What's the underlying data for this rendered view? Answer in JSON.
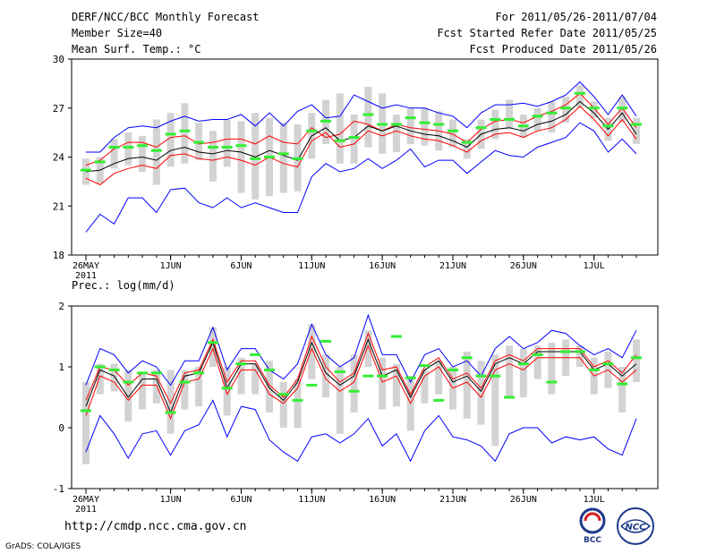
{
  "header": {
    "title": "DERF/NCC/BCC Monthly Forecast",
    "member": "Member Size=40",
    "variable": "Mean Surf. Temp.: °C",
    "period": "For 2011/05/26-2011/07/04",
    "started": "Fcst Started Refer Date 2011/05/25",
    "produced": "Fcst Produced Date 2011/05/26"
  },
  "footer": {
    "url": "http://cmdp.ncc.cma.gov.cn",
    "grads": "GrADS: COLA/IGES",
    "logo_left": "BCC",
    "logo_right": "NCC"
  },
  "colors": {
    "envelope": "#0000ff",
    "spread": "#ff0000",
    "mean": "#000000",
    "member_mean": "#33ee33",
    "box": "#d3d3d3"
  },
  "chart_data": [
    {
      "type": "line",
      "title": "Mean Surf. Temp.: °C",
      "xlabel": "",
      "ylabel": "°C",
      "ylim": [
        18,
        30
      ],
      "yticks": [
        18,
        21,
        24,
        27,
        30
      ],
      "xticks": [
        {
          "day": 0,
          "label": "26MAY",
          "sub": "2011"
        },
        {
          "day": 6,
          "label": "1JUN"
        },
        {
          "day": 11,
          "label": "6JUN"
        },
        {
          "day": 16,
          "label": "11JUN"
        },
        {
          "day": 21,
          "label": "16JUN"
        },
        {
          "day": 26,
          "label": "21JUN"
        },
        {
          "day": 31,
          "label": "26JUN"
        },
        {
          "day": 36,
          "label": "1JUL"
        }
      ],
      "x": [
        0,
        1,
        2,
        3,
        4,
        5,
        6,
        7,
        8,
        9,
        10,
        11,
        12,
        13,
        14,
        15,
        16,
        17,
        18,
        19,
        20,
        21,
        22,
        23,
        24,
        25,
        26,
        27,
        28,
        29,
        30,
        31,
        32,
        33,
        34,
        35,
        36,
        37,
        38,
        39
      ],
      "series": [
        {
          "name": "max",
          "values": [
            24.3,
            24.3,
            25.2,
            25.8,
            25.9,
            25.8,
            26.2,
            26.5,
            26.2,
            26.3,
            26.3,
            26.6,
            25.9,
            26.7,
            25.9,
            26.8,
            27.2,
            26.4,
            26.5,
            27.8,
            27.4,
            27.0,
            27.2,
            27.0,
            27.0,
            26.7,
            26.5,
            25.8,
            26.7,
            27.2,
            27.2,
            27.3,
            27.1,
            27.4,
            27.8,
            28.6,
            27.7,
            26.6,
            27.8,
            26.5
          ]
        },
        {
          "name": "p75",
          "values": [
            23.5,
            23.8,
            24.5,
            24.9,
            24.9,
            24.6,
            25.2,
            25.3,
            24.8,
            24.9,
            25.1,
            25.1,
            24.8,
            25.3,
            24.9,
            24.8,
            25.8,
            25.2,
            25.4,
            26.2,
            26.0,
            25.6,
            26.0,
            25.8,
            25.7,
            25.6,
            25.4,
            24.9,
            25.7,
            26.2,
            26.3,
            26.1,
            26.5,
            26.8,
            27.2,
            27.9,
            27.0,
            26.0,
            27.0,
            25.8
          ]
        },
        {
          "name": "mean",
          "values": [
            23.1,
            23.2,
            23.6,
            23.9,
            24.0,
            23.8,
            24.4,
            24.6,
            24.3,
            24.2,
            24.4,
            24.3,
            24.0,
            24.4,
            24.1,
            23.8,
            25.3,
            25.8,
            25.0,
            25.2,
            25.9,
            25.6,
            25.9,
            25.6,
            25.4,
            25.3,
            25.0,
            24.6,
            25.4,
            25.7,
            25.8,
            25.6,
            26.0,
            26.2,
            26.6,
            27.4,
            26.7,
            25.7,
            26.7,
            25.4
          ]
        },
        {
          "name": "p25",
          "values": [
            22.7,
            22.3,
            23.0,
            23.3,
            23.5,
            23.3,
            24.1,
            24.2,
            23.9,
            23.8,
            24.0,
            23.8,
            23.5,
            24.0,
            23.6,
            23.4,
            25.0,
            25.5,
            24.6,
            24.8,
            25.6,
            25.3,
            25.6,
            25.3,
            25.1,
            25.0,
            24.7,
            24.3,
            25.0,
            25.4,
            25.5,
            25.2,
            25.6,
            25.8,
            26.3,
            27.1,
            26.3,
            25.3,
            26.3,
            25.1
          ]
        },
        {
          "name": "min",
          "values": [
            22.0,
            22.2,
            22.2,
            22.7,
            22.9,
            22.8,
            23.3,
            23.9,
            23.6,
            23.5,
            23.7,
            23.6,
            23.4,
            23.6,
            23.3,
            23.2,
            24.7,
            25.3,
            24.3,
            24.6,
            25.3,
            25.0,
            25.3,
            25.0,
            24.8,
            24.7,
            24.5,
            24.0,
            24.8,
            25.1,
            25.2,
            24.9,
            25.3,
            25.5,
            26.0,
            26.8,
            26.0,
            25.0,
            26.0,
            24.7
          ]
        },
        {
          "name": "min_env",
          "values": [
            19.4,
            20.5,
            19.9,
            21.5,
            21.5,
            20.6,
            22.0,
            22.1,
            21.2,
            20.9,
            21.5,
            20.9,
            21.2,
            20.9,
            20.6,
            20.6,
            22.8,
            23.6,
            23.1,
            23.3,
            23.9,
            23.3,
            23.8,
            24.5,
            23.4,
            23.8,
            23.8,
            23.0,
            23.7,
            24.4,
            24.1,
            24.0,
            24.6,
            24.9,
            25.2,
            26.1,
            25.6,
            24.3,
            25.1,
            24.2
          ]
        },
        {
          "name": "member_mean",
          "values": [
            23.2,
            23.7,
            24.6,
            24.6,
            24.7,
            24.4,
            25.4,
            25.6,
            24.9,
            24.6,
            24.6,
            24.7,
            23.9,
            24.0,
            24.2,
            23.9,
            25.6,
            26.2,
            25.0,
            25.2,
            26.6,
            26.0,
            26.0,
            26.4,
            26.1,
            26.0,
            25.6,
            24.9,
            25.8,
            26.3,
            26.3,
            25.9,
            26.5,
            26.7,
            27.0,
            27.9,
            27.0,
            25.9,
            27.0,
            26.0
          ]
        },
        {
          "name": "box_top",
          "values": [
            23.9,
            24.0,
            25.1,
            25.5,
            25.3,
            26.3,
            26.7,
            27.3,
            26.1,
            25.6,
            26.3,
            26.2,
            26.7,
            26.4,
            26.1,
            26.0,
            26.7,
            27.5,
            27.9,
            26.6,
            28.3,
            27.9,
            26.6,
            27.0,
            27.0,
            26.8,
            26.3,
            25.1,
            26.3,
            26.9,
            27.5,
            26.6,
            27.0,
            27.4,
            27.7,
            28.4,
            27.4,
            26.4,
            27.7,
            26.4
          ]
        },
        {
          "name": "box_bot",
          "values": [
            22.3,
            22.4,
            23.3,
            23.5,
            23.1,
            22.3,
            23.4,
            23.6,
            23.8,
            22.5,
            23.4,
            21.8,
            21.4,
            21.6,
            21.8,
            21.9,
            23.9,
            24.8,
            23.6,
            23.6,
            24.6,
            24.2,
            24.3,
            24.8,
            24.7,
            24.4,
            24.6,
            23.9,
            24.5,
            25.1,
            25.7,
            25.2,
            25.6,
            25.5,
            26.1,
            27.0,
            26.4,
            25.0,
            26.1,
            24.8
          ]
        }
      ]
    },
    {
      "type": "line",
      "title": "Prec.: log(mm/d)",
      "xlabel": "",
      "ylabel": "log(mm/d)",
      "ylim": [
        -1,
        2
      ],
      "yticks": [
        -1,
        0,
        1,
        2
      ],
      "xticks": [
        {
          "day": 0,
          "label": "26MAY",
          "sub": "2011"
        },
        {
          "day": 6,
          "label": "1JUN"
        },
        {
          "day": 11,
          "label": "6JUN"
        },
        {
          "day": 16,
          "label": "11JUN"
        },
        {
          "day": 21,
          "label": "16JUN"
        },
        {
          "day": 26,
          "label": "21JUN"
        },
        {
          "day": 31,
          "label": "26JUN"
        },
        {
          "day": 36,
          "label": "1JUL"
        }
      ],
      "x": [
        0,
        1,
        2,
        3,
        4,
        5,
        6,
        7,
        8,
        9,
        10,
        11,
        12,
        13,
        14,
        15,
        16,
        17,
        18,
        19,
        20,
        21,
        22,
        23,
        24,
        25,
        26,
        27,
        28,
        29,
        30,
        31,
        32,
        33,
        34,
        35,
        36,
        37,
        38,
        39
      ],
      "series": [
        {
          "name": "max",
          "values": [
            0.7,
            1.3,
            1.2,
            0.9,
            1.1,
            1.0,
            0.7,
            1.1,
            1.1,
            1.65,
            0.95,
            1.3,
            1.3,
            0.95,
            0.8,
            1.05,
            1.7,
            1.2,
            1.0,
            1.15,
            1.85,
            1.2,
            1.2,
            0.75,
            1.2,
            1.3,
            1.0,
            1.1,
            0.85,
            1.3,
            1.5,
            1.3,
            1.4,
            1.6,
            1.55,
            1.35,
            1.2,
            1.3,
            1.15,
            1.6
          ]
        },
        {
          "name": "p75",
          "values": [
            0.45,
            1.0,
            0.95,
            0.7,
            0.9,
            0.85,
            0.4,
            0.9,
            0.95,
            1.45,
            0.75,
            1.1,
            1.1,
            0.7,
            0.5,
            0.8,
            1.5,
            1.0,
            0.75,
            0.9,
            1.55,
            0.95,
            1.0,
            0.55,
            1.0,
            1.15,
            0.8,
            0.9,
            0.65,
            1.1,
            1.2,
            1.1,
            1.3,
            1.3,
            1.3,
            1.3,
            1.0,
            1.1,
            0.9,
            1.2
          ]
        },
        {
          "name": "mean",
          "values": [
            0.35,
            0.95,
            0.85,
            0.5,
            0.8,
            0.8,
            0.25,
            0.85,
            0.9,
            1.4,
            0.65,
            1.05,
            1.05,
            0.65,
            0.45,
            0.75,
            1.4,
            0.9,
            0.7,
            0.85,
            1.45,
            0.85,
            0.95,
            0.5,
            0.95,
            1.1,
            0.75,
            0.85,
            0.6,
            1.05,
            1.15,
            1.05,
            1.25,
            1.25,
            1.25,
            1.25,
            0.95,
            1.05,
            0.85,
            1.05
          ]
        },
        {
          "name": "p25",
          "values": [
            0.2,
            0.85,
            0.75,
            0.45,
            0.7,
            0.7,
            0.15,
            0.75,
            0.8,
            1.3,
            0.55,
            0.95,
            0.95,
            0.55,
            0.4,
            0.65,
            1.3,
            0.8,
            0.6,
            0.75,
            1.35,
            0.75,
            0.85,
            0.4,
            0.85,
            1.0,
            0.65,
            0.75,
            0.5,
            0.95,
            1.05,
            0.95,
            1.15,
            1.15,
            1.15,
            1.15,
            0.85,
            0.95,
            0.75,
            0.95
          ]
        },
        {
          "name": "min",
          "values": [
            0.05,
            0.75,
            0.65,
            0.25,
            0.45,
            0.55,
            0.1,
            0.6,
            0.65,
            1.1,
            0.45,
            0.75,
            0.75,
            0.45,
            0.35,
            0.45,
            1.1,
            0.55,
            0.35,
            0.55,
            1.15,
            0.55,
            0.55,
            0.25,
            0.6,
            0.85,
            0.55,
            0.45,
            0.35,
            0.75,
            0.85,
            0.6,
            0.95,
            0.75,
            0.95,
            1.15,
            0.75,
            0.45,
            0.65,
            0.95
          ]
        },
        {
          "name": "min_env",
          "values": [
            -0.4,
            0.2,
            -0.1,
            -0.5,
            -0.1,
            -0.05,
            -0.45,
            -0.05,
            0.05,
            0.45,
            -0.15,
            0.35,
            0.3,
            -0.2,
            -0.4,
            -0.55,
            -0.15,
            -0.1,
            -0.25,
            -0.1,
            0.15,
            -0.3,
            -0.1,
            -0.55,
            -0.05,
            0.2,
            -0.15,
            -0.2,
            -0.3,
            -0.55,
            -0.1,
            0.0,
            0.0,
            -0.25,
            -0.15,
            -0.2,
            -0.15,
            -0.35,
            -0.45,
            0.15
          ]
        },
        {
          "name": "member_mean",
          "values": [
            0.28,
            1.0,
            0.95,
            0.75,
            0.9,
            0.9,
            0.25,
            0.75,
            0.9,
            1.4,
            0.65,
            1.05,
            1.2,
            0.95,
            0.55,
            0.45,
            0.7,
            1.42,
            0.92,
            0.6,
            0.85,
            0.85,
            1.5,
            0.82,
            1.02,
            0.45,
            0.95,
            1.15,
            0.85,
            0.85,
            0.5,
            1.05,
            1.2,
            0.75,
            1.25,
            1.25,
            0.95,
            1.05,
            0.72,
            1.15
          ]
        },
        {
          "name": "box_top",
          "values": [
            0.75,
            1.05,
            1.05,
            0.95,
            0.9,
            0.95,
            0.95,
            0.95,
            1.0,
            1.65,
            1.0,
            1.15,
            1.05,
            1.1,
            0.75,
            0.8,
            1.7,
            1.2,
            1.0,
            1.2,
            1.6,
            1.15,
            1.05,
            0.85,
            0.95,
            1.1,
            1.0,
            1.25,
            1.1,
            1.2,
            1.35,
            1.3,
            1.35,
            1.4,
            1.45,
            1.35,
            1.15,
            1.25,
            1.0,
            1.45
          ]
        },
        {
          "name": "box_bot",
          "values": [
            -0.6,
            0.55,
            0.6,
            0.1,
            0.3,
            0.4,
            -0.1,
            0.3,
            0.35,
            1.0,
            0.2,
            0.55,
            0.55,
            0.25,
            0.0,
            0.0,
            0.8,
            0.5,
            -0.1,
            0.25,
            1.0,
            0.3,
            0.35,
            -0.05,
            0.4,
            0.55,
            0.3,
            0.15,
            0.05,
            -0.3,
            0.5,
            0.5,
            0.8,
            0.55,
            0.85,
            1.0,
            0.55,
            0.65,
            0.25,
            0.75
          ]
        }
      ]
    }
  ]
}
